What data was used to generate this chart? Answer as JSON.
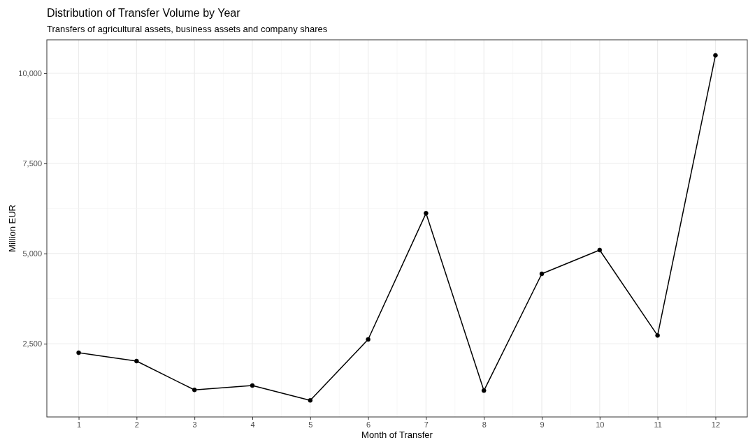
{
  "chart_data": {
    "type": "line",
    "title": "Distribution of Transfer Volume by Year",
    "subtitle": "Transfers of agricultural assets, business assets and company shares",
    "xlabel": "Month of Transfer",
    "ylabel": "Million EUR",
    "x": [
      1,
      2,
      3,
      4,
      5,
      6,
      7,
      8,
      9,
      10,
      11,
      12
    ],
    "series": [
      {
        "color": "#000000",
        "values": [
          2250,
          2020,
          1220,
          1340,
          930,
          2620,
          6120,
          1200,
          4440,
          5100,
          2730,
          10500
        ]
      }
    ],
    "xlim": [
      0.45,
      12.55
    ],
    "xticks": [
      1,
      2,
      3,
      4,
      5,
      6,
      7,
      8,
      9,
      10,
      11,
      12
    ],
    "ylim": [
      470,
      10930
    ],
    "yticks": [
      {
        "value": 2500,
        "label": "2,500"
      },
      {
        "value": 5000,
        "label": "5,000"
      },
      {
        "value": 7500,
        "label": "7,500"
      },
      {
        "value": 10000,
        "label": "10,000"
      }
    ],
    "grid": true,
    "marker": "circle",
    "line_style": "solid"
  }
}
